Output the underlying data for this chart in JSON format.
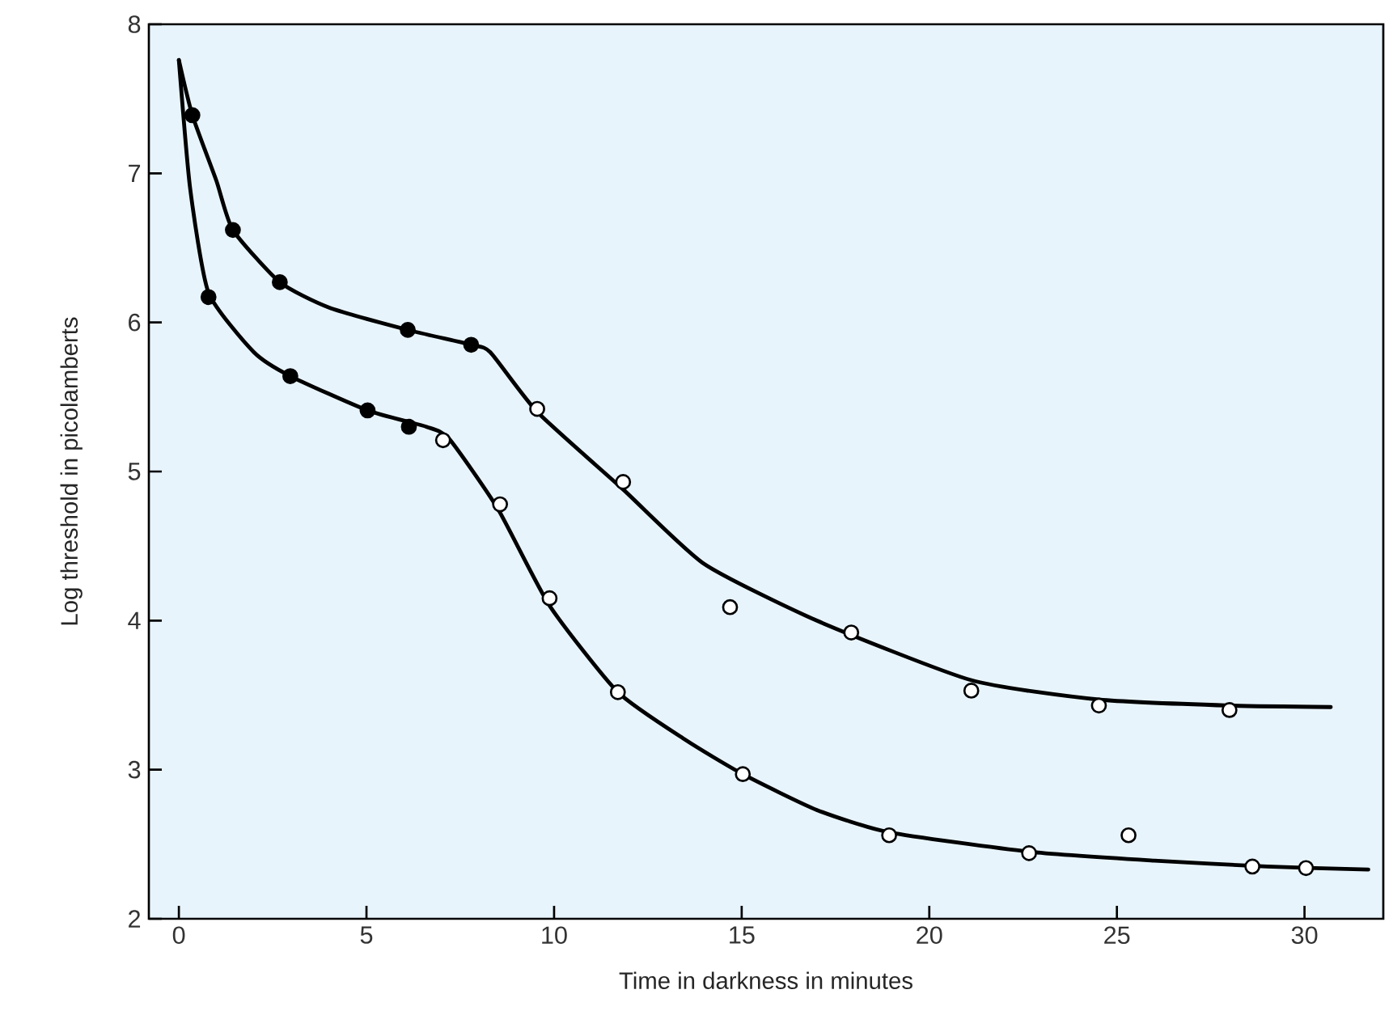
{
  "chart_data": {
    "type": "line",
    "xlabel": "Time in darkness in minutes",
    "ylabel": "Log threshold in picolamberts",
    "xlim": [
      -0.8,
      32.1
    ],
    "ylim": [
      2,
      8
    ],
    "xticks": [
      0,
      5,
      10,
      15,
      20,
      25,
      30
    ],
    "yticks": [
      2,
      3,
      4,
      5,
      6,
      7,
      8
    ],
    "grid": false,
    "series": [
      {
        "color": "#000000",
        "marker": "none",
        "line_style": "solid",
        "x": [
          0,
          0.36,
          1,
          1.44,
          2.69,
          4,
          6.1,
          7.79,
          8.3,
          9.55,
          11.84,
          14,
          17,
          21.12,
          24.52,
          28,
          30.7
        ],
        "values": [
          7.76,
          7.39,
          6.95,
          6.62,
          6.27,
          6.1,
          5.95,
          5.85,
          5.8,
          5.4,
          4.88,
          4.38,
          4.0,
          3.6,
          3.47,
          3.43,
          3.42
        ]
      },
      {
        "color": "#000000",
        "marker": "none",
        "line_style": "solid",
        "x": [
          0,
          0.3,
          0.79,
          2,
          2.97,
          5.03,
          6.6,
          7.2,
          8.5,
          9.88,
          11.7,
          13.5,
          15.03,
          17,
          18.93,
          22.66,
          26,
          29,
          31.7
        ],
        "values": [
          7.76,
          6.9,
          6.2,
          5.8,
          5.64,
          5.41,
          5.3,
          5.22,
          4.75,
          4.1,
          3.52,
          3.2,
          2.97,
          2.73,
          2.58,
          2.45,
          2.39,
          2.35,
          2.33
        ]
      },
      {
        "type": "scatter",
        "color": "#000000",
        "marker": "circle",
        "x": [
          0.36,
          1.44,
          2.69,
          6.1,
          7.79
        ],
        "values": [
          7.39,
          6.62,
          6.27,
          5.95,
          5.85
        ]
      },
      {
        "type": "scatter",
        "color": "#ffffff",
        "marker": "circle",
        "x": [
          9.55,
          11.84,
          14.69,
          17.92,
          21.12,
          24.52,
          28.0
        ],
        "values": [
          5.42,
          4.93,
          4.09,
          3.92,
          3.53,
          3.43,
          3.4
        ]
      },
      {
        "type": "scatter",
        "color": "#000000",
        "marker": "circle",
        "x": [
          0.79,
          2.97,
          5.03,
          6.13
        ],
        "values": [
          6.17,
          5.64,
          5.41,
          5.3
        ]
      },
      {
        "type": "scatter",
        "color": "#ffffff",
        "marker": "circle",
        "x": [
          7.04,
          8.56,
          9.88,
          11.7,
          15.03,
          18.93,
          22.66,
          25.31,
          28.61,
          30.04
        ],
        "values": [
          5.21,
          4.78,
          4.15,
          3.52,
          2.97,
          2.56,
          2.44,
          2.56,
          2.35,
          2.34
        ]
      }
    ]
  }
}
